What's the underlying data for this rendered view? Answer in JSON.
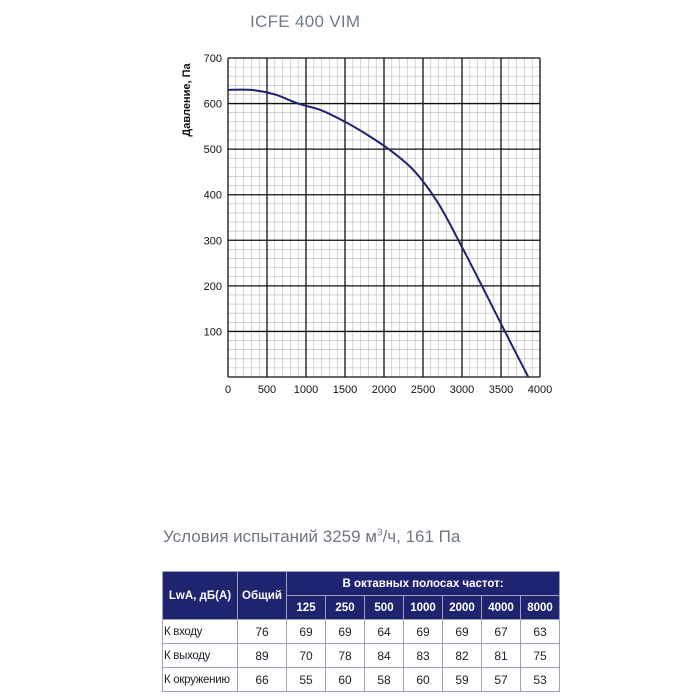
{
  "chart_data": {
    "type": "line",
    "title": "ICFE 400 VIM",
    "xlabel": "",
    "ylabel": "Давление, Па",
    "xlim": [
      0,
      4000
    ],
    "ylim": [
      0,
      700
    ],
    "x_ticks": [
      "0",
      "500",
      "1000",
      "1500",
      "2000",
      "2500",
      "3000",
      "3500",
      "4000"
    ],
    "y_ticks": [
      "100",
      "200",
      "300",
      "400",
      "500",
      "600",
      "700"
    ],
    "grid": true,
    "series": [
      {
        "color": "#1f2470",
        "points": [
          [
            0,
            630
          ],
          [
            300,
            630
          ],
          [
            600,
            620
          ],
          [
            900,
            600
          ],
          [
            1200,
            585
          ],
          [
            1500,
            560
          ],
          [
            1800,
            530
          ],
          [
            2100,
            495
          ],
          [
            2400,
            450
          ],
          [
            2700,
            380
          ],
          [
            3000,
            285
          ],
          [
            3300,
            185
          ],
          [
            3550,
            100
          ],
          [
            3850,
            0
          ]
        ]
      }
    ]
  },
  "conditions": {
    "prefix": "Условия испытаний 3259 м",
    "sup": "3",
    "suffix": "/ч, 161 Па"
  },
  "table": {
    "col_label": "LwA, дБ(А)",
    "col_total": "Общий",
    "bands_title": "В октавных полосах частот:",
    "bands": [
      "125",
      "250",
      "500",
      "1000",
      "2000",
      "4000",
      "8000"
    ],
    "rows": [
      {
        "label": "К входу",
        "total": "76",
        "values": [
          "69",
          "69",
          "64",
          "69",
          "69",
          "67",
          "63"
        ]
      },
      {
        "label": "К выходу",
        "total": "89",
        "values": [
          "70",
          "78",
          "84",
          "83",
          "82",
          "81",
          "75"
        ]
      },
      {
        "label": "К окружению",
        "total": "66",
        "values": [
          "55",
          "60",
          "58",
          "60",
          "59",
          "57",
          "53"
        ]
      }
    ]
  },
  "colors": {
    "curve": "#1f2470",
    "header_bg": "#1f2470",
    "grid_major": "#111111",
    "grid_minor": "#b9b9b9"
  }
}
